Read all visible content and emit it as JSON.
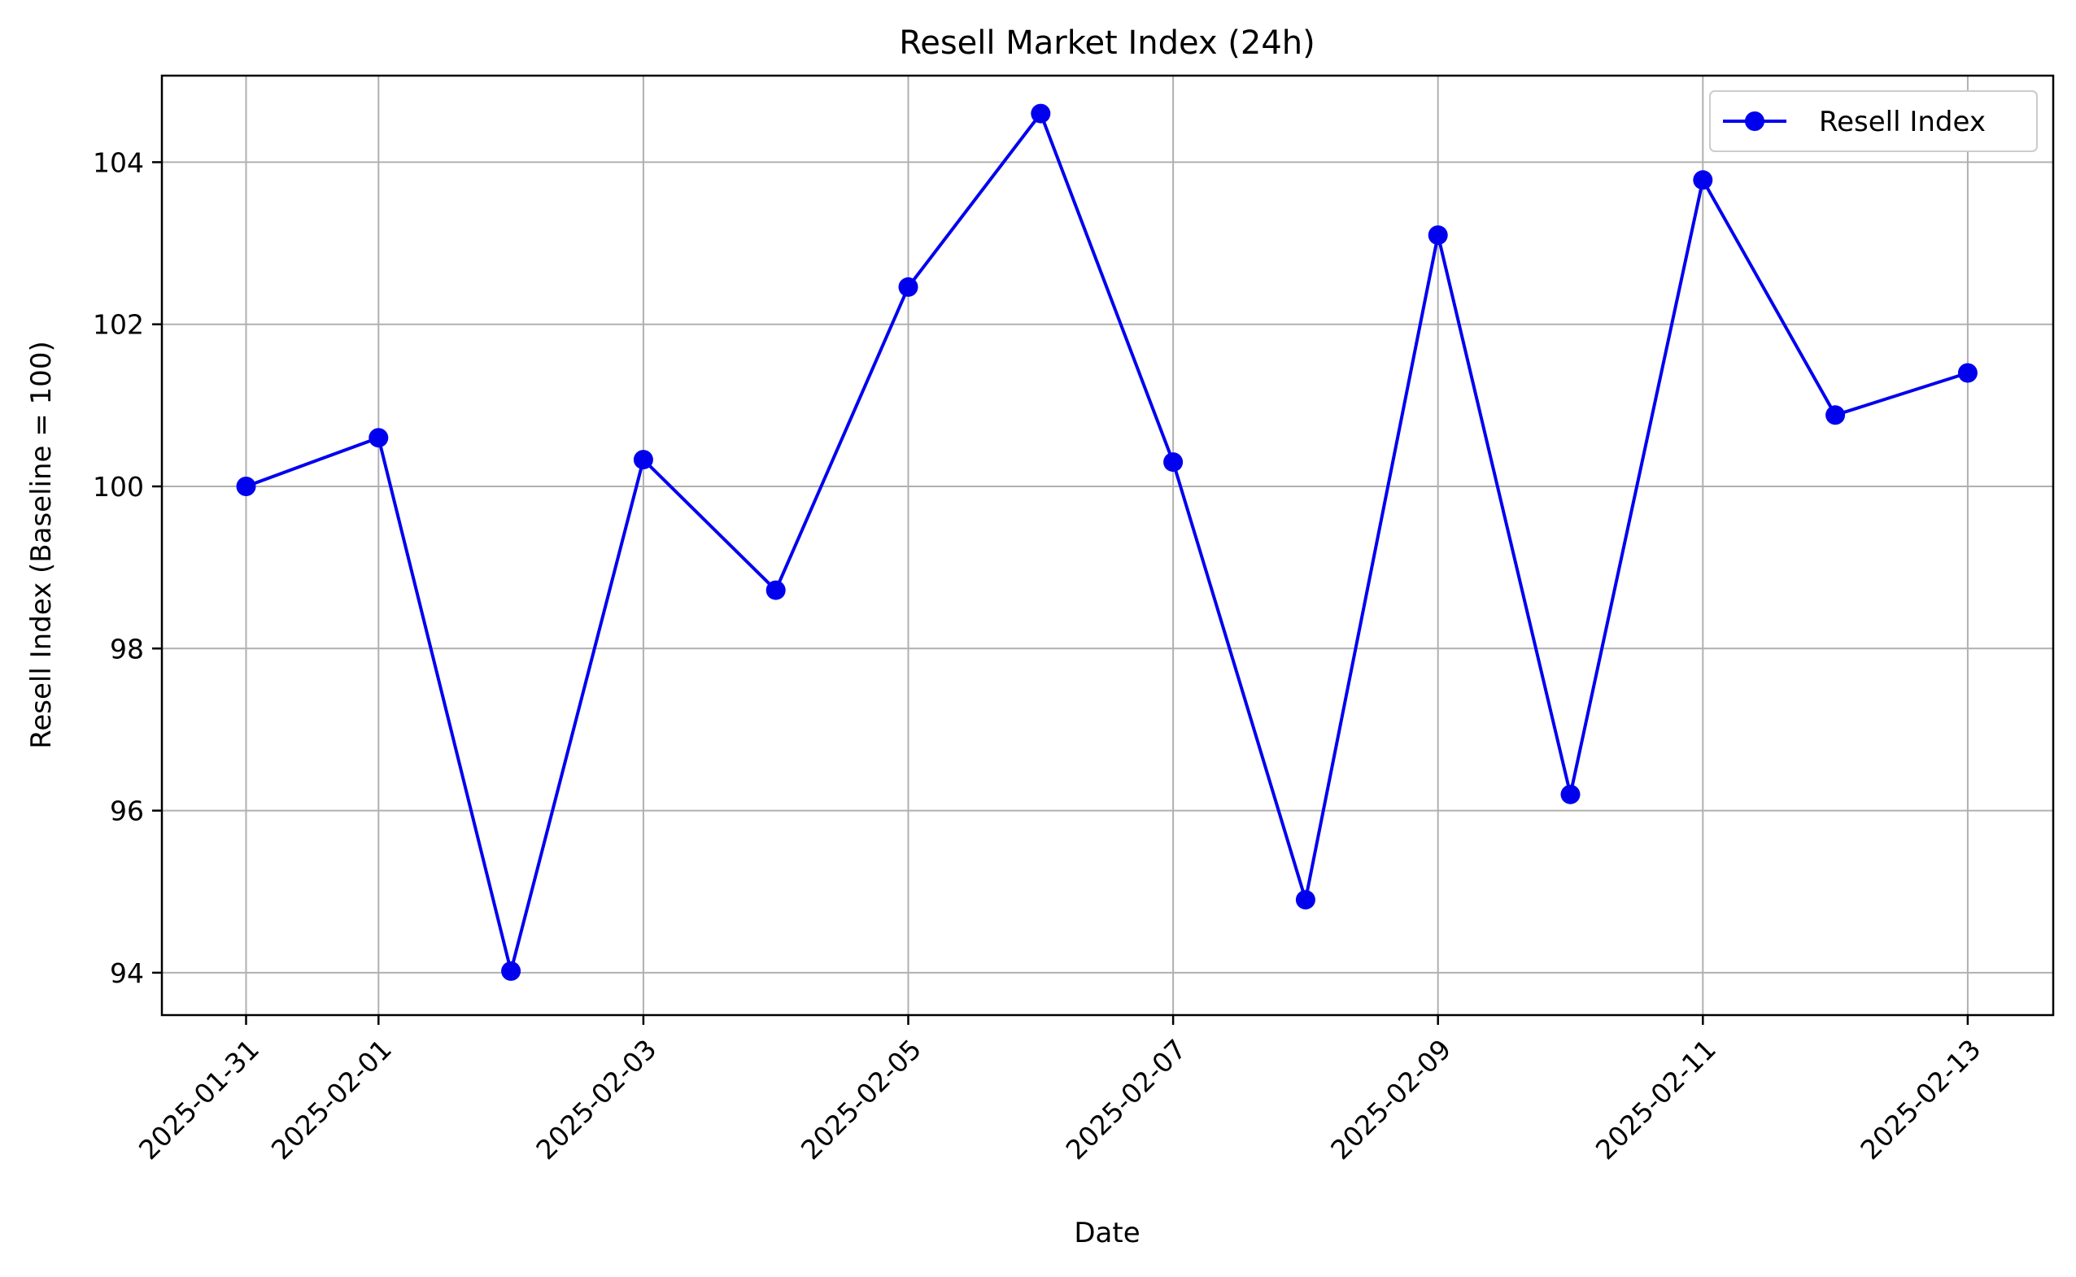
{
  "chart_data": {
    "type": "line",
    "title": "Resell Market Index (24h)",
    "xlabel": "Date",
    "ylabel": "Resell Index (Baseline = 100)",
    "x": [
      "2025-01-31",
      "2025-02-01",
      "2025-02-02",
      "2025-02-03",
      "2025-02-04",
      "2025-02-05",
      "2025-02-06",
      "2025-02-07",
      "2025-02-08",
      "2025-02-09",
      "2025-02-10",
      "2025-02-11",
      "2025-02-12",
      "2025-02-13"
    ],
    "x_ticks": [
      "2025-01-31",
      "2025-02-01",
      "2025-02-03",
      "2025-02-05",
      "2025-02-07",
      "2025-02-09",
      "2025-02-11",
      "2025-02-13"
    ],
    "y_ticks": [
      94,
      96,
      98,
      100,
      102,
      104
    ],
    "xlim": [
      "2025-01-30",
      "2025-02-13"
    ],
    "ylim": [
      93.5,
      105.1
    ],
    "grid": true,
    "legend_position": "top-right",
    "series": [
      {
        "name": "Resell Index",
        "color": "#0000ee",
        "marker": "circle",
        "values": [
          100.0,
          100.6,
          94.02,
          100.33,
          98.72,
          102.46,
          104.6,
          100.3,
          94.9,
          103.1,
          96.2,
          103.78,
          100.88,
          101.4
        ]
      }
    ]
  }
}
